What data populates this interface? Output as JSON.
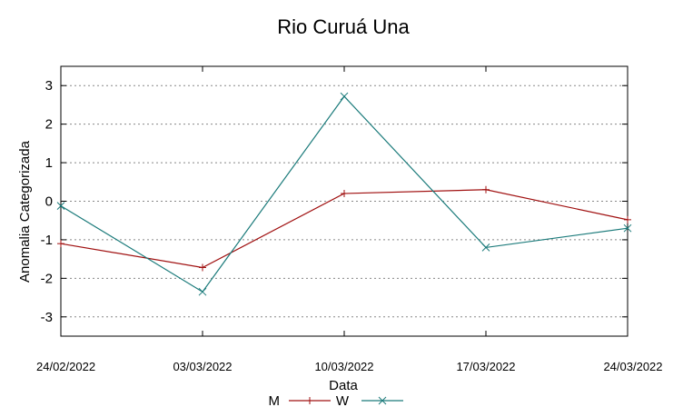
{
  "chart_data": {
    "type": "line",
    "title": "Rio Curuá Una",
    "xlabel": "Data",
    "ylabel": "Anomalia Categorizada",
    "x": [
      "24/02/2022",
      "03/03/2022",
      "10/03/2022",
      "17/03/2022",
      "24/03/2022"
    ],
    "ylim": [
      -3.5,
      3.5
    ],
    "yticks": [
      -3,
      -2,
      -1,
      0,
      1,
      2,
      3
    ],
    "ytick_labels": [
      "-3",
      "-2",
      "-1",
      "0",
      "1",
      "2",
      "3"
    ],
    "grid": "horizontal dotted",
    "legend": "bottom",
    "series": [
      {
        "name": "M",
        "color": "#a01010",
        "marker": "plus",
        "values": [
          -1.1,
          -1.72,
          0.2,
          0.3,
          -0.48
        ]
      },
      {
        "name": "W",
        "color": "#1a7a7a",
        "marker": "x",
        "values": [
          -0.12,
          -2.35,
          2.72,
          -1.2,
          -0.7
        ]
      }
    ]
  }
}
